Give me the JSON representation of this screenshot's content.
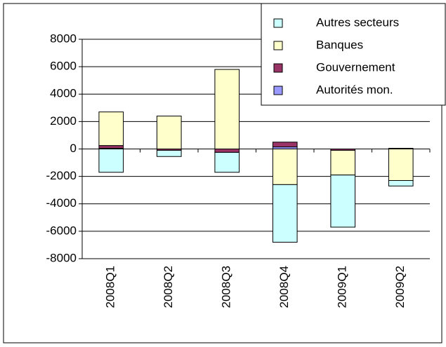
{
  "chart_data": {
    "type": "bar",
    "stacked": true,
    "categories": [
      "2008Q1",
      "2008Q2",
      "2008Q3",
      "2008Q4",
      "2009Q1",
      "2009Q2"
    ],
    "series": [
      {
        "name": "Autres secteurs",
        "color": "#ccffff",
        "values": [
          -1700,
          -450,
          -1450,
          -4200,
          -3800,
          -400
        ]
      },
      {
        "name": "Banques",
        "color": "#ffffcc",
        "values": [
          2450,
          2400,
          5800,
          -2600,
          -1800,
          -2300
        ]
      },
      {
        "name": "Gouvernement",
        "color": "#993366",
        "values": [
          200,
          -100,
          -250,
          350,
          -100,
          50
        ]
      },
      {
        "name": "Autorités mon.",
        "color": "#9999ff",
        "values": [
          50,
          0,
          0,
          150,
          0,
          0
        ]
      }
    ],
    "ylim": [
      -8000,
      8000
    ],
    "yticks": [
      -8000,
      -6000,
      -4000,
      -2000,
      0,
      2000,
      4000,
      6000,
      8000
    ],
    "grid": true
  }
}
